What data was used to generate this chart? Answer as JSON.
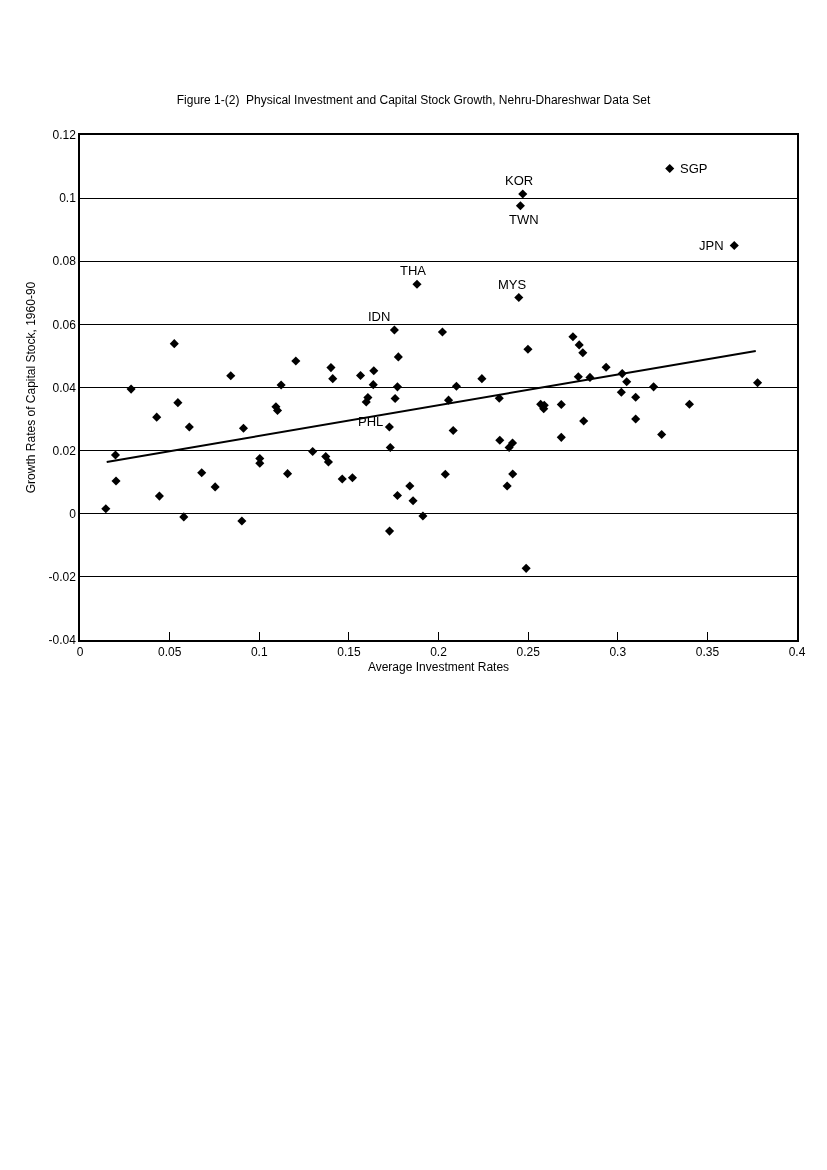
{
  "chart_data": {
    "type": "scatter",
    "title": "Figure 1-(2)  Physical Investment and Capital Stock Growth, Nehru-Dhareshwar Data Set",
    "xlabel": "Average Investment Rates",
    "ylabel": "Growth Rates of Capital Stock, 1960-90",
    "xlim": [
      0,
      0.4
    ],
    "xticks": [
      0,
      0.05,
      0.1,
      0.15,
      0.2,
      0.25,
      0.3,
      0.35,
      0.4
    ],
    "ylim": [
      -0.04,
      0.12
    ],
    "yticks": [
      -0.04,
      -0.02,
      0,
      0.02,
      0.04,
      0.06,
      0.08,
      0.1,
      0.12
    ],
    "grid": "y",
    "series": [
      {
        "type": "scatter",
        "marker": "diamond",
        "color": "#000000",
        "x": [
          0.378,
          0.365,
          0.329,
          0.34,
          0.3245,
          0.32,
          0.31,
          0.31,
          0.305,
          0.3025,
          0.302,
          0.2935,
          0.2845,
          0.281,
          0.2805,
          0.2785,
          0.278,
          0.275,
          0.2685,
          0.2685,
          0.259,
          0.2587,
          0.257,
          0.247,
          0.2457,
          0.2448,
          0.2499,
          0.2489,
          0.2413,
          0.2394,
          0.2414,
          0.2383,
          0.2339,
          0.2342,
          0.2242,
          0.21,
          0.2056,
          0.2082,
          0.2038,
          0.2022,
          0.188,
          0.1913,
          0.184,
          0.1858,
          0.1771,
          0.1727,
          0.1754,
          0.1776,
          0.1771,
          0.1758,
          0.1726,
          0.1731,
          0.1639,
          0.1636,
          0.1606,
          0.1597,
          0.1565,
          0.152,
          0.1463,
          0.14,
          0.141,
          0.1371,
          0.1386,
          0.1298,
          0.1204,
          0.1158,
          0.1122,
          0.1093,
          0.1102,
          0.1003,
          0.1003,
          0.0912,
          0.0903,
          0.0841,
          0.0754,
          0.0679,
          0.061,
          0.0579,
          0.0546,
          0.0526,
          0.0428,
          0.0443,
          0.0285,
          0.0198,
          0.0201,
          0.0144
        ],
        "values": [
          0.0415,
          0.085,
          0.1094,
          0.0347,
          0.0251,
          0.0402,
          0.0369,
          0.03,
          0.0418,
          0.0444,
          0.0385,
          0.0464,
          0.0432,
          0.0294,
          0.051,
          0.0535,
          0.0434,
          0.0561,
          0.0346,
          0.0242,
          0.0344,
          0.0333,
          0.0347,
          0.1013,
          0.0976,
          0.0685,
          0.0521,
          -0.0173,
          0.0224,
          0.021,
          0.0126,
          0.0088,
          0.0366,
          0.0233,
          0.0428,
          0.0404,
          0.036,
          0.0264,
          0.0125,
          0.0576,
          0.0727,
          -0.0007,
          0.0088,
          0.0041,
          0.0058,
          -0.0055,
          0.0582,
          0.0497,
          0.0402,
          0.0365,
          0.0275,
          0.021,
          0.0453,
          0.0409,
          0.0368,
          0.0354,
          0.0438,
          0.0114,
          0.011,
          0.0463,
          0.0428,
          0.0181,
          0.0164,
          0.0197,
          0.0484,
          0.0127,
          0.0408,
          0.0339,
          0.0327,
          0.0175,
          0.016,
          0.0271,
          -0.0023,
          0.0437,
          0.0085,
          0.013,
          0.0275,
          -0.001,
          0.0352,
          0.0539,
          0.0306,
          0.0056,
          0.0395,
          0.0186,
          0.0104,
          0.0016
        ]
      },
      {
        "type": "line",
        "marker": "none",
        "color": "#000000",
        "x": [
          0.0149,
          0.377
        ],
        "values": [
          0.0164,
          0.0516
        ]
      }
    ],
    "annotations": [
      {
        "text": "SGP",
        "x": 0.329,
        "y": 0.1094
      },
      {
        "text": "JPN",
        "x": 0.365,
        "y": 0.085
      },
      {
        "text": "KOR",
        "x": 0.247,
        "y": 0.1013
      },
      {
        "text": "TWN",
        "x": 0.2457,
        "y": 0.0976
      },
      {
        "text": "MYS",
        "x": 0.2448,
        "y": 0.0685
      },
      {
        "text": "THA",
        "x": 0.188,
        "y": 0.0727
      },
      {
        "text": "IDN",
        "x": 0.1754,
        "y": 0.0582
      },
      {
        "text": "PHL",
        "x": 0.1597,
        "y": 0.0354
      }
    ]
  }
}
